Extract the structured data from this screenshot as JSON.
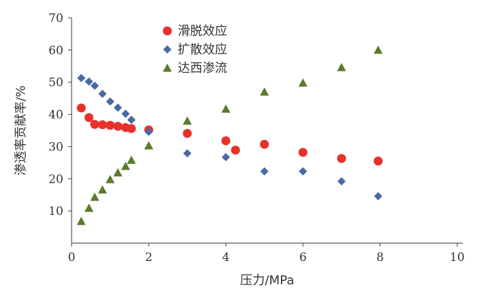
{
  "chart_data": {
    "type": "scatter",
    "xlabel": "压力/MPa",
    "ylabel": "渗透率贡献率/%",
    "xlim": [
      0,
      10
    ],
    "ylim": [
      0,
      70
    ],
    "x_ticks": [
      "0",
      "2",
      "4",
      "6",
      "8",
      "10"
    ],
    "y_ticks": [
      "10",
      "20",
      "30",
      "40",
      "50",
      "60",
      "70"
    ],
    "grid": false,
    "legend_position": "top-center",
    "series": [
      {
        "name": "滑脱效应",
        "marker": "circle",
        "color": "#e8312b",
        "points": [
          [
            0.25,
            42.0
          ],
          [
            0.45,
            39.0
          ],
          [
            0.6,
            36.9
          ],
          [
            0.8,
            36.8
          ],
          [
            1.0,
            36.6
          ],
          [
            1.2,
            36.3
          ],
          [
            1.4,
            35.9
          ],
          [
            1.55,
            35.6
          ],
          [
            2.0,
            35.2
          ],
          [
            3.0,
            34.1
          ],
          [
            4.0,
            31.8
          ],
          [
            4.25,
            28.9
          ],
          [
            5.0,
            30.7
          ],
          [
            6.0,
            28.2
          ],
          [
            7.0,
            26.3
          ],
          [
            7.95,
            25.5
          ]
        ]
      },
      {
        "name": "扩散效应",
        "marker": "diamond",
        "color": "#4a6aa5",
        "points": [
          [
            0.25,
            51.3
          ],
          [
            0.45,
            50.2
          ],
          [
            0.6,
            48.9
          ],
          [
            0.8,
            46.4
          ],
          [
            1.0,
            44.0
          ],
          [
            1.2,
            42.1
          ],
          [
            1.4,
            40.2
          ],
          [
            1.55,
            38.3
          ],
          [
            2.0,
            34.6
          ],
          [
            3.0,
            27.9
          ],
          [
            4.0,
            26.7
          ],
          [
            5.0,
            22.3
          ],
          [
            6.0,
            22.3
          ],
          [
            7.0,
            19.2
          ],
          [
            7.95,
            14.6
          ]
        ]
      },
      {
        "name": "达西渗流",
        "marker": "triangle",
        "color": "#5b7b2a",
        "points": [
          [
            0.25,
            6.8
          ],
          [
            0.45,
            10.9
          ],
          [
            0.6,
            14.3
          ],
          [
            0.8,
            16.6
          ],
          [
            1.0,
            19.8
          ],
          [
            1.2,
            21.9
          ],
          [
            1.4,
            23.9
          ],
          [
            1.55,
            25.8
          ],
          [
            2.0,
            30.3
          ],
          [
            3.0,
            38.0
          ],
          [
            4.0,
            41.7
          ],
          [
            5.0,
            47.0
          ],
          [
            6.0,
            49.8
          ],
          [
            7.0,
            54.6
          ],
          [
            7.95,
            60.0
          ]
        ]
      }
    ]
  }
}
